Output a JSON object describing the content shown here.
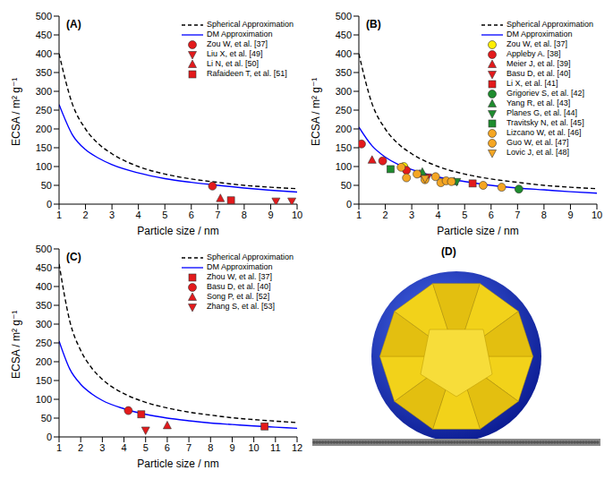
{
  "chart_data": [
    {
      "type": "scatter",
      "title": "(A)",
      "x_label": "Particle size / nm",
      "y_label": "ECSA / m² g⁻¹",
      "xlim": [
        1,
        10
      ],
      "xticks": [
        1,
        2,
        3,
        4,
        5,
        6,
        7,
        8,
        9,
        10
      ],
      "ylim": [
        0,
        500
      ],
      "yticks": [
        0,
        50,
        100,
        150,
        200,
        250,
        300,
        350,
        400,
        450,
        500
      ],
      "legend": "upper right",
      "grid": false,
      "series": [
        {
          "name": "Spherical Approximation",
          "type": "line",
          "line_style": "dashed",
          "color": "#000000",
          "x": [
            1,
            1.5,
            2,
            2.5,
            3,
            4,
            5,
            6,
            7,
            8,
            9,
            10
          ],
          "values": [
            400,
            267,
            200,
            160,
            134,
            100,
            80,
            67,
            58,
            50,
            45,
            41
          ]
        },
        {
          "name": "DM Approximation",
          "type": "line",
          "line_style": "solid",
          "color": "#0000ff",
          "x": [
            1,
            1.5,
            2,
            2.5,
            3,
            4,
            5,
            6,
            7,
            8,
            9,
            10
          ],
          "values": [
            265,
            185,
            145,
            122,
            105,
            83,
            68,
            58,
            50,
            43,
            37,
            32
          ]
        },
        {
          "name": "Zou W, et al. [37]",
          "type": "scatter",
          "marker": "circle",
          "color": "#e31a1c",
          "x": [
            6.8
          ],
          "values": [
            48
          ]
        },
        {
          "name": "Liu X, et al. [49]",
          "type": "scatter",
          "marker": "triangle-down",
          "color": "#e31a1c",
          "x": [
            9.2,
            9.8
          ],
          "values": [
            8,
            8
          ]
        },
        {
          "name": "Li N, et al. [50]",
          "type": "scatter",
          "marker": "triangle",
          "color": "#e31a1c",
          "x": [
            7.1
          ],
          "values": [
            15
          ]
        },
        {
          "name": "Rafaideen T, et al. [51]",
          "type": "scatter",
          "marker": "square",
          "color": "#e31a1c",
          "x": [
            7.5
          ],
          "values": [
            10
          ]
        }
      ]
    },
    {
      "type": "scatter",
      "title": "(B)",
      "x_label": "Particle size / nm",
      "y_label": "ECSA / m² g⁻¹",
      "xlim": [
        1,
        10
      ],
      "xticks": [
        1,
        2,
        3,
        4,
        5,
        6,
        7,
        8,
        9,
        10
      ],
      "ylim": [
        0,
        500
      ],
      "yticks": [
        0,
        50,
        100,
        150,
        200,
        250,
        300,
        350,
        400,
        450,
        500
      ],
      "legend": "upper right",
      "grid": false,
      "series": [
        {
          "name": "Spherical Approximation",
          "type": "line",
          "line_style": "dashed",
          "color": "#000000",
          "x": [
            1,
            1.5,
            2,
            2.5,
            3,
            4,
            5,
            6,
            7,
            8,
            9,
            10
          ],
          "values": [
            400,
            267,
            200,
            160,
            134,
            100,
            80,
            67,
            58,
            50,
            45,
            41
          ]
        },
        {
          "name": "DM Approximation",
          "type": "line",
          "line_style": "solid",
          "color": "#0000ff",
          "x": [
            1,
            1.5,
            2,
            2.5,
            3,
            4,
            5,
            6,
            7,
            8,
            9,
            10
          ],
          "values": [
            205,
            155,
            125,
            105,
            92,
            72,
            60,
            50,
            43,
            38,
            33,
            29
          ]
        },
        {
          "name": "Zou W, et al. [37]",
          "type": "scatter",
          "marker": "circle",
          "color": "#ffee00",
          "x": [
            2.7
          ],
          "values": [
            100
          ]
        },
        {
          "name": "Appleby A. [38]",
          "type": "scatter",
          "marker": "circle",
          "color": "#e31a1c",
          "x": [
            1.1,
            1.9,
            2.8
          ],
          "values": [
            160,
            115,
            90
          ]
        },
        {
          "name": "Meier J, et al. [39]",
          "type": "scatter",
          "marker": "triangle",
          "color": "#e31a1c",
          "x": [
            1.5,
            3.3
          ],
          "values": [
            117,
            80
          ]
        },
        {
          "name": "Basu D, et al. [40]",
          "type": "scatter",
          "marker": "triangle-down",
          "color": "#e31a1c",
          "x": [
            3.6
          ],
          "values": [
            72
          ]
        },
        {
          "name": "Li X, et al. [41]",
          "type": "scatter",
          "marker": "square",
          "color": "#e31a1c",
          "x": [
            5.3
          ],
          "values": [
            55
          ]
        },
        {
          "name": "Grigoriev S, et al. [42]",
          "type": "scatter",
          "marker": "circle",
          "color": "#1e8c2e",
          "x": [
            7.05
          ],
          "values": [
            40
          ]
        },
        {
          "name": "Yang R, et al. [43]",
          "type": "scatter",
          "marker": "triangle",
          "color": "#1e8c2e",
          "x": [
            3.4,
            4.6
          ],
          "values": [
            85,
            60
          ]
        },
        {
          "name": "Planes G, et al. [44]",
          "type": "scatter",
          "marker": "triangle-down",
          "color": "#1e8c2e",
          "x": [
            4.7
          ],
          "values": [
            60
          ]
        },
        {
          "name": "Travitsky N, et al. [45]",
          "type": "scatter",
          "marker": "square",
          "color": "#1e8c2e",
          "x": [
            2.2
          ],
          "values": [
            93
          ]
        },
        {
          "name": "Lizcano W, et al. [46]",
          "type": "scatter",
          "marker": "circle",
          "color": "#f5a623",
          "x": [
            2.8,
            3.5,
            3.9,
            4.1,
            4.3,
            4.5,
            5.7,
            6.4
          ],
          "values": [
            70,
            65,
            73,
            57,
            62,
            60,
            50,
            45
          ]
        },
        {
          "name": "Guo W, et al. [47]",
          "type": "scatter",
          "marker": "circle",
          "color": "#f5a623",
          "x": [
            2.6,
            3.2
          ],
          "values": [
            98,
            80
          ]
        },
        {
          "name": "Lovic J, et al. [48]",
          "type": "scatter",
          "marker": "triangle-down",
          "color": "#f5a623",
          "x": [
            3.5
          ],
          "values": [
            68
          ]
        }
      ]
    },
    {
      "type": "scatter",
      "title": "(C)",
      "x_label": "Particle size / nm",
      "y_label": "ECSA / m² g⁻¹",
      "xlim": [
        1,
        12
      ],
      "xticks": [
        1,
        2,
        3,
        4,
        5,
        6,
        7,
        8,
        9,
        10,
        11,
        12
      ],
      "ylim": [
        0,
        500
      ],
      "yticks": [
        0,
        50,
        100,
        150,
        200,
        250,
        300,
        350,
        400,
        450,
        500
      ],
      "legend": "upper right",
      "grid": false,
      "series": [
        {
          "name": "Spherical Approximation",
          "type": "line",
          "line_style": "dashed",
          "color": "#000000",
          "x": [
            1,
            1.5,
            2,
            2.5,
            3,
            4,
            5,
            6,
            7,
            8,
            9,
            10,
            11,
            12
          ],
          "values": [
            460,
            307,
            230,
            184,
            153,
            115,
            92,
            77,
            66,
            58,
            51,
            46,
            42,
            38
          ]
        },
        {
          "name": "DM Approximation",
          "type": "line",
          "line_style": "solid",
          "color": "#0000ff",
          "x": [
            1,
            1.5,
            2,
            2.5,
            3,
            4,
            5,
            6,
            7,
            8,
            9,
            10,
            11,
            12
          ],
          "values": [
            255,
            180,
            140,
            115,
            97,
            75,
            60,
            50,
            43,
            37,
            33,
            29,
            26,
            23
          ]
        },
        {
          "name": "Zhou W, et al. [37]",
          "type": "scatter",
          "marker": "square",
          "color": "#e31a1c",
          "x": [
            4.8,
            10.5
          ],
          "values": [
            60,
            28
          ]
        },
        {
          "name": "Basu D, et al. [40]",
          "type": "scatter",
          "marker": "circle",
          "color": "#e31a1c",
          "x": [
            4.2
          ],
          "values": [
            70
          ]
        },
        {
          "name": "Song P, et al. [52]",
          "type": "scatter",
          "marker": "triangle",
          "color": "#e31a1c",
          "x": [
            6
          ],
          "values": [
            30
          ]
        },
        {
          "name": "Zhang S, et al. [53]",
          "type": "scatter",
          "marker": "triangle-down",
          "color": "#e31a1c",
          "x": [
            5
          ],
          "values": [
            18
          ]
        }
      ]
    }
  ],
  "image_panel": {
    "title": "(D)"
  }
}
